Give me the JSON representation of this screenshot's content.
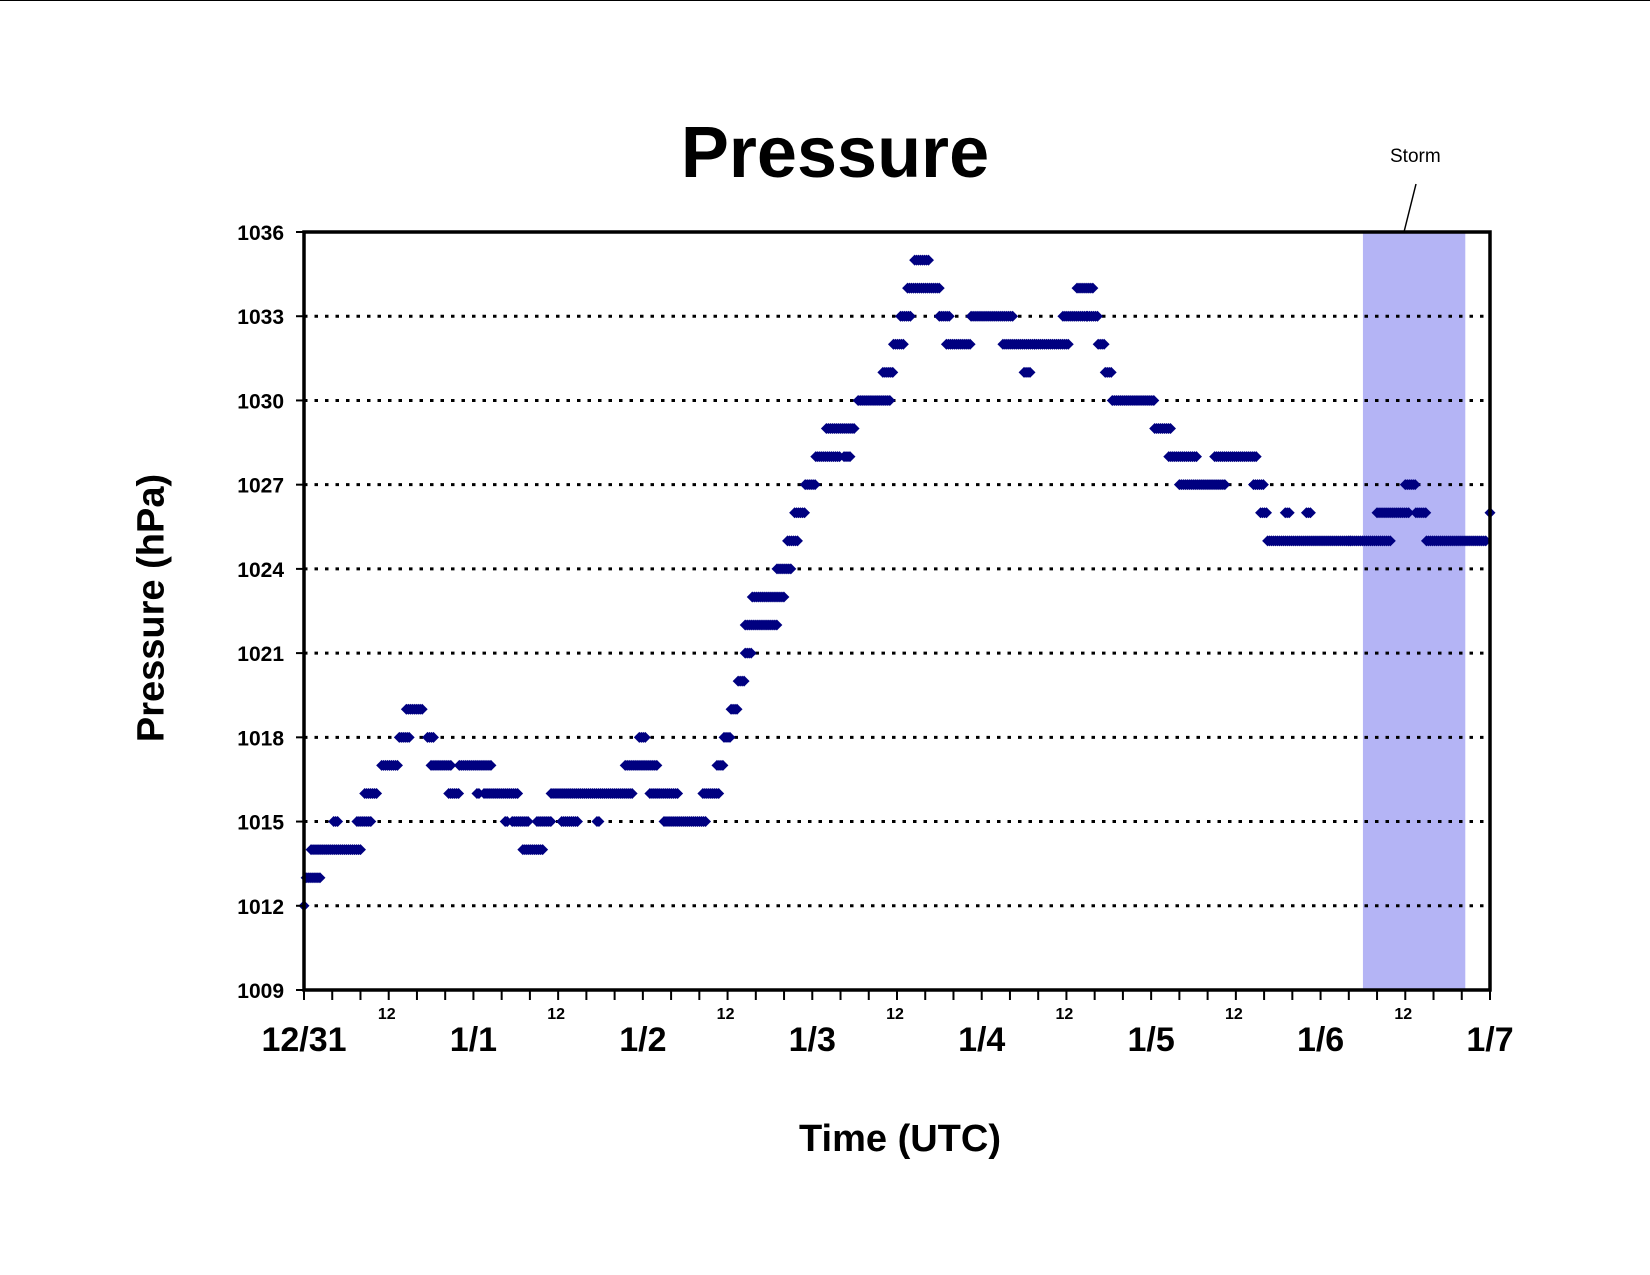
{
  "chart_data": {
    "type": "scatter",
    "title": "Pressure",
    "xlabel": "Time (UTC)",
    "ylabel": "Pressure (hPa)",
    "ylim": [
      1009,
      1036
    ],
    "yticks": [
      1009,
      1012,
      1015,
      1018,
      1021,
      1024,
      1027,
      1030,
      1033,
      1036
    ],
    "x_unit": "hours since 12/31 00 UTC",
    "xlim": [
      0,
      168
    ],
    "x_major_ticks": [
      {
        "x": 0,
        "label": "12/31"
      },
      {
        "x": 24,
        "label": "1/1"
      },
      {
        "x": 48,
        "label": "1/2"
      },
      {
        "x": 72,
        "label": "1/3"
      },
      {
        "x": 96,
        "label": "1/4"
      },
      {
        "x": 120,
        "label": "1/5"
      },
      {
        "x": 144,
        "label": "1/6"
      },
      {
        "x": 168,
        "label": "1/7"
      }
    ],
    "x_minor_label": "12",
    "x_minor_label_positions": [
      12,
      36,
      60,
      84,
      108,
      132,
      156
    ],
    "grid": "horizontal dotted",
    "marker_color": "#000080",
    "annotation": {
      "label": "Storm",
      "x_start": 150,
      "x_end": 164.5,
      "color": "#b4b4f5"
    },
    "series_segments": [
      [
        0.0,
        0.0,
        1012
      ],
      [
        0.3,
        2.4,
        1013
      ],
      [
        1.0,
        8.0,
        1014
      ],
      [
        4.2,
        5.0,
        1015
      ],
      [
        7.5,
        9.5,
        1015
      ],
      [
        8.6,
        10.5,
        1016
      ],
      [
        11.0,
        13.5,
        1017
      ],
      [
        13.5,
        15.0,
        1018
      ],
      [
        14.5,
        17.0,
        1019
      ],
      [
        17.5,
        18.5,
        1018
      ],
      [
        18.0,
        21.0,
        1017
      ],
      [
        20.5,
        22.0,
        1016
      ],
      [
        22.0,
        26.5,
        1017
      ],
      [
        24.5,
        25.0,
        1016
      ],
      [
        25.5,
        30.5,
        1016
      ],
      [
        28.5,
        29.0,
        1015
      ],
      [
        29.5,
        32.0,
        1015
      ],
      [
        31.0,
        34.0,
        1014
      ],
      [
        33.0,
        35.0,
        1015
      ],
      [
        35.0,
        46.5,
        1016
      ],
      [
        36.5,
        39.0,
        1015
      ],
      [
        41.5,
        41.8,
        1015
      ],
      [
        45.5,
        50.0,
        1017
      ],
      [
        47.5,
        48.5,
        1018
      ],
      [
        49.0,
        53.0,
        1016
      ],
      [
        51.0,
        57.0,
        1015
      ],
      [
        56.5,
        59.0,
        1016
      ],
      [
        58.5,
        59.5,
        1017
      ],
      [
        59.5,
        60.5,
        1018
      ],
      [
        60.5,
        61.5,
        1019
      ],
      [
        61.5,
        62.5,
        1020
      ],
      [
        62.5,
        63.5,
        1021
      ],
      [
        62.5,
        67.0,
        1022
      ],
      [
        63.5,
        68.0,
        1023
      ],
      [
        67.0,
        69.0,
        1024
      ],
      [
        68.5,
        70.0,
        1025
      ],
      [
        69.5,
        71.0,
        1026
      ],
      [
        71.0,
        72.5,
        1027
      ],
      [
        72.5,
        76.0,
        1028
      ],
      [
        74.0,
        78.0,
        1029
      ],
      [
        76.5,
        77.5,
        1028
      ],
      [
        78.5,
        83.0,
        1030
      ],
      [
        82.0,
        83.5,
        1031
      ],
      [
        83.5,
        85.0,
        1032
      ],
      [
        84.5,
        86.0,
        1033
      ],
      [
        85.5,
        90.0,
        1034
      ],
      [
        86.5,
        88.5,
        1035
      ],
      [
        90.0,
        91.5,
        1033
      ],
      [
        91.0,
        94.5,
        1032
      ],
      [
        94.5,
        100.5,
        1033
      ],
      [
        99.0,
        103.5,
        1032
      ],
      [
        102.0,
        103.0,
        1031
      ],
      [
        103.5,
        108.5,
        1032
      ],
      [
        107.5,
        111.0,
        1033
      ],
      [
        109.5,
        112.0,
        1034
      ],
      [
        111.0,
        112.5,
        1033
      ],
      [
        112.5,
        113.5,
        1032
      ],
      [
        113.5,
        114.5,
        1031
      ],
      [
        114.5,
        120.5,
        1030
      ],
      [
        120.5,
        123.0,
        1029
      ],
      [
        122.5,
        126.5,
        1028
      ],
      [
        124.0,
        130.5,
        1027
      ],
      [
        129.0,
        135.0,
        1028
      ],
      [
        134.5,
        136.0,
        1027
      ],
      [
        135.5,
        136.5,
        1026
      ],
      [
        136.5,
        148.5,
        1025
      ],
      [
        139.0,
        139.6,
        1026
      ],
      [
        142.0,
        142.6,
        1026
      ],
      [
        148.0,
        154.0,
        1025
      ],
      [
        152.0,
        156.5,
        1026
      ],
      [
        156.0,
        157.5,
        1027
      ],
      [
        157.5,
        159.0,
        1026
      ],
      [
        159.0,
        167.5,
        1025
      ],
      [
        168.0,
        168.0,
        1026
      ]
    ]
  }
}
